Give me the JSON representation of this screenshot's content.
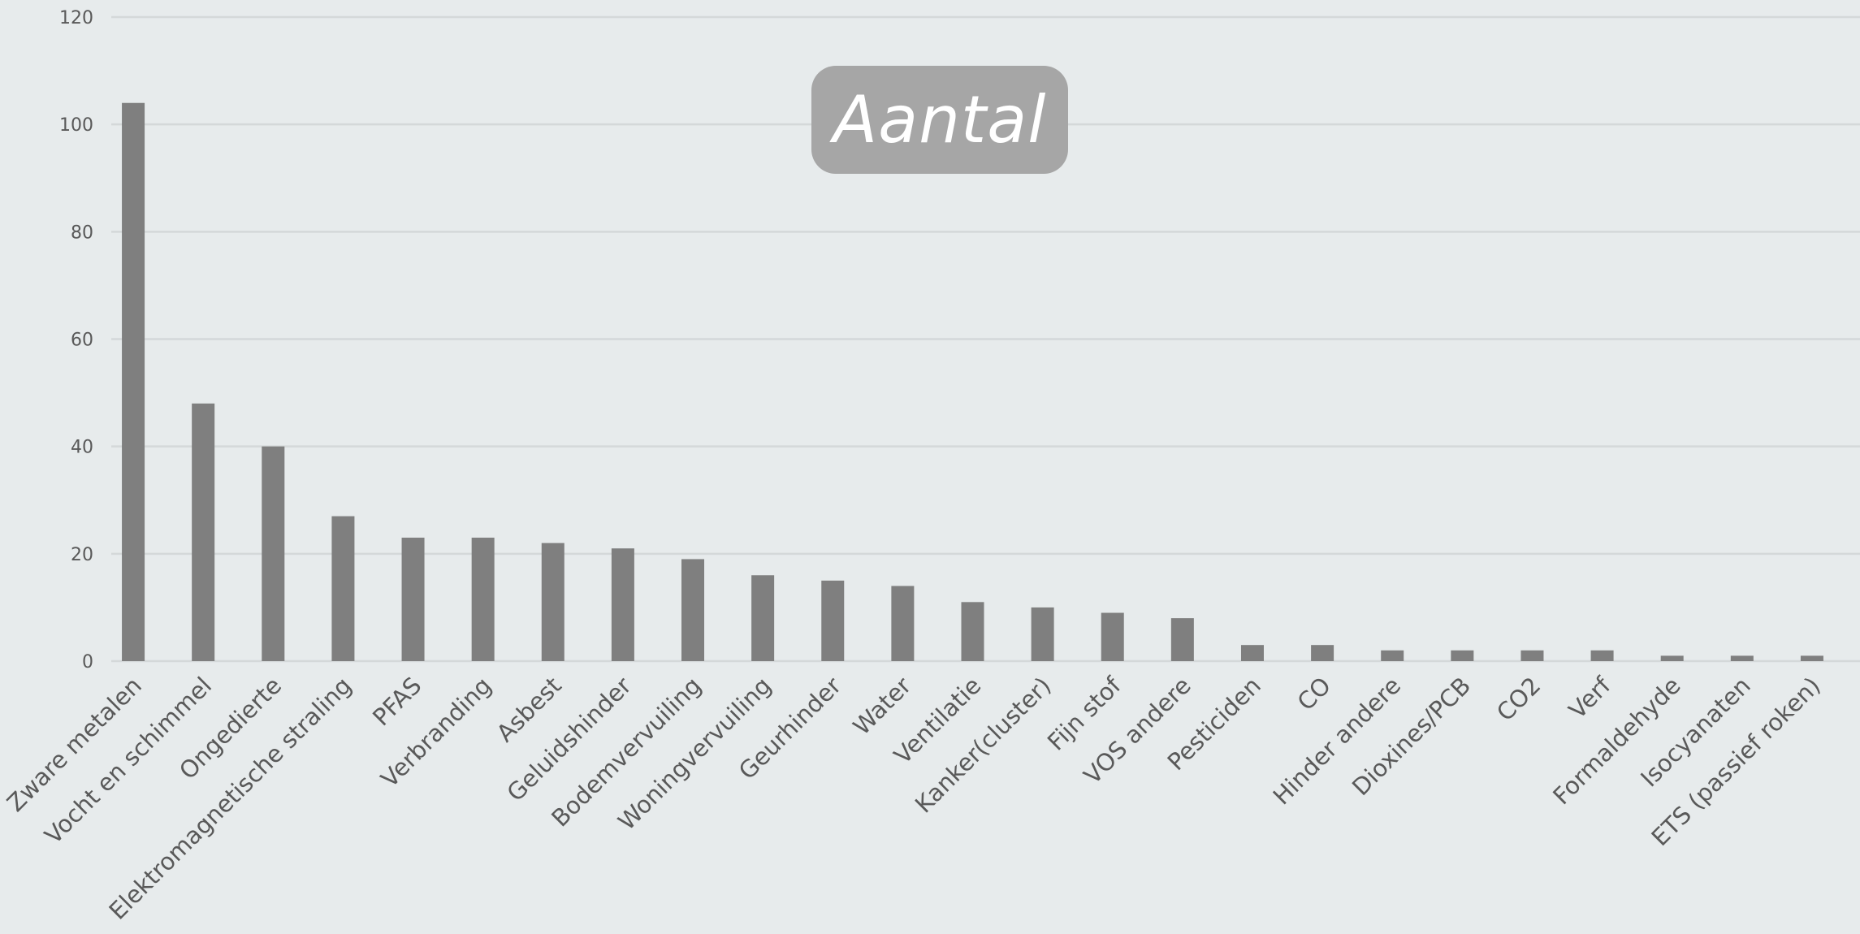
{
  "chart_data": {
    "type": "bar",
    "title": "Aantal",
    "xlabel": "",
    "ylabel": "",
    "ylim": [
      0,
      120
    ],
    "yticks": [
      0,
      20,
      40,
      60,
      80,
      100,
      120
    ],
    "grid": true,
    "legend": "none",
    "colors": {
      "bar": "#7f7f7f",
      "grid": "#d4d8d9",
      "background": "#e7ebec",
      "title_box": "#a6a6a6",
      "title_text": "#ffffff",
      "tick_text": "#595959"
    },
    "categories": [
      "Zware metalen",
      "Vocht en schimmel",
      "Ongedierte",
      "Elektromagnetische straling",
      "PFAS",
      "Verbranding",
      "Asbest",
      "Geluidshinder",
      "Bodemvervuiling",
      "Woningvervuiling",
      "Geurhinder",
      "Water",
      "Ventilatie",
      "Kanker(cluster)",
      "Fijn stof",
      "VOS andere",
      "Pesticiden",
      "CO",
      "Hinder andere",
      "Dioxines/PCB",
      "CO2",
      "Verf",
      "Formaldehyde",
      "Isocyanaten",
      "ETS (passief roken)"
    ],
    "values": [
      104,
      48,
      40,
      27,
      23,
      23,
      22,
      21,
      19,
      16,
      15,
      14,
      11,
      10,
      9,
      8,
      3,
      3,
      2,
      2,
      2,
      2,
      1,
      1,
      1
    ]
  }
}
